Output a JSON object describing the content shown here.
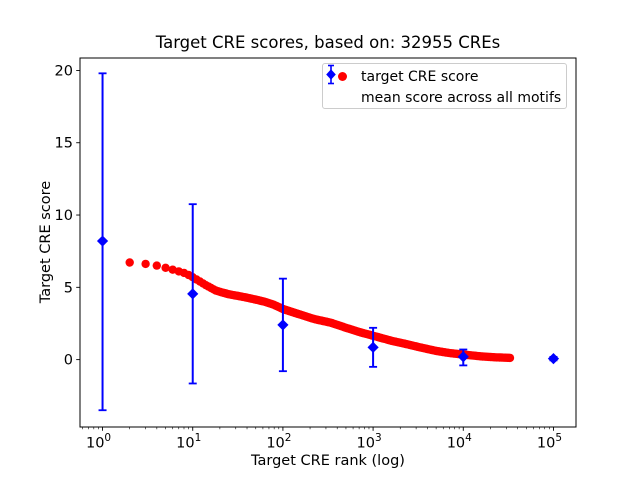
{
  "figure": {
    "title": "Target CRE scores, based on: 32955 CREs",
    "xlabel": "Target CRE rank (log)",
    "ylabel": "Target CRE score"
  },
  "legend": {
    "position": "upper right",
    "items": [
      {
        "label": "target CRE score",
        "marker": "red-circle"
      },
      {
        "label": "mean score across all motifs",
        "marker": "blue-diamond-with-errorbar"
      }
    ]
  },
  "chart_data": {
    "type": "scatter",
    "title": "Target CRE scores, based on: 32955 CREs",
    "xlabel": "Target CRE rank (log)",
    "ylabel": "Target CRE score",
    "x_scale": "log",
    "x_tick_exponents": [
      0,
      1,
      2,
      3,
      4,
      5
    ],
    "y_ticks": [
      0,
      5,
      10,
      15,
      20
    ],
    "x_range_log10": [
      -0.25,
      5.25
    ],
    "y_range": [
      -4.66,
      20.86
    ],
    "grid": false,
    "colors": {
      "target_series": "#ff0000",
      "mean_series": "#0000ff"
    },
    "series": [
      {
        "name": "target CRE score",
        "type": "dense_points",
        "color": "#ff0000",
        "marker": "circle",
        "n_points_depicted": 32955,
        "rank_range": [
          2,
          32955
        ],
        "anchors": [
          [
            2,
            6.72
          ],
          [
            3,
            6.62
          ],
          [
            4,
            6.5
          ],
          [
            5,
            6.35
          ],
          [
            6,
            6.22
          ],
          [
            7,
            6.1
          ],
          [
            8,
            6.0
          ],
          [
            9,
            5.85
          ],
          [
            10,
            5.7
          ],
          [
            12,
            5.4
          ],
          [
            14,
            5.15
          ],
          [
            18,
            4.78
          ],
          [
            21,
            4.65
          ],
          [
            25,
            4.52
          ],
          [
            32,
            4.4
          ],
          [
            40,
            4.28
          ],
          [
            50,
            4.15
          ],
          [
            63,
            4.0
          ],
          [
            79,
            3.8
          ],
          [
            100,
            3.5
          ],
          [
            158,
            3.1
          ],
          [
            224,
            2.8
          ],
          [
            340,
            2.55
          ],
          [
            500,
            2.2
          ],
          [
            710,
            1.9
          ],
          [
            1000,
            1.65
          ],
          [
            1600,
            1.3
          ],
          [
            2240,
            1.1
          ],
          [
            3300,
            0.85
          ],
          [
            5000,
            0.6
          ],
          [
            7100,
            0.45
          ],
          [
            10000,
            0.35
          ],
          [
            16000,
            0.22
          ],
          [
            22400,
            0.16
          ],
          [
            32955,
            0.12
          ]
        ]
      },
      {
        "name": "mean score across all motifs",
        "type": "errorbar_points",
        "color": "#0000ff",
        "marker": "diamond",
        "points": [
          {
            "rank": 1,
            "mean": 8.2,
            "err_up": 11.6,
            "err_down": 11.7
          },
          {
            "rank": 10,
            "mean": 4.55,
            "err_up": 6.2,
            "err_down": 6.2
          },
          {
            "rank": 100,
            "mean": 2.4,
            "err_up": 3.2,
            "err_down": 3.2
          },
          {
            "rank": 1000,
            "mean": 0.85,
            "err_up": 1.35,
            "err_down": 1.35
          },
          {
            "rank": 10000,
            "mean": 0.2,
            "err_up": 0.5,
            "err_down": 0.6
          },
          {
            "rank": 100000,
            "mean": 0.07,
            "err_up": 0.12,
            "err_down": 0.12
          }
        ]
      }
    ]
  }
}
